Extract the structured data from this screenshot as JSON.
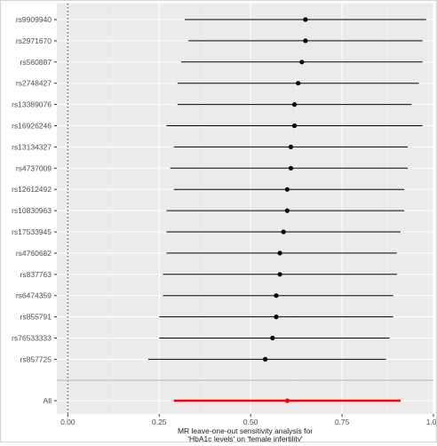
{
  "chart_data": {
    "type": "forest",
    "title": "",
    "xlabel": "MR leave-one-out sensitivity analysis for\n'HbA1c levels' on 'female infertility'",
    "ylabel": "",
    "xlim": [
      -0.03,
      1.0
    ],
    "x_ticks": [
      0.0,
      0.25,
      0.5,
      0.75,
      1.0
    ],
    "x_tick_labels": [
      "0.00",
      "0.25",
      "0.50",
      "0.75",
      "1.00"
    ],
    "reference_line": 0,
    "grid": true,
    "background": "#ebebeb",
    "overall_color": "#ff0000",
    "point_color": "#000000",
    "rows": [
      {
        "label": "rs9909940",
        "estimate": 0.65,
        "lower": 0.32,
        "upper": 0.98
      },
      {
        "label": "rs2971670",
        "estimate": 0.65,
        "lower": 0.33,
        "upper": 0.97
      },
      {
        "label": "rs560887",
        "estimate": 0.64,
        "lower": 0.31,
        "upper": 0.97
      },
      {
        "label": "rs2748427",
        "estimate": 0.63,
        "lower": 0.3,
        "upper": 0.96
      },
      {
        "label": "rs13389076",
        "estimate": 0.62,
        "lower": 0.3,
        "upper": 0.94
      },
      {
        "label": "rs16926246",
        "estimate": 0.62,
        "lower": 0.27,
        "upper": 0.97
      },
      {
        "label": "rs13134327",
        "estimate": 0.61,
        "lower": 0.29,
        "upper": 0.93
      },
      {
        "label": "rs4737009",
        "estimate": 0.61,
        "lower": 0.28,
        "upper": 0.93
      },
      {
        "label": "rs12612492",
        "estimate": 0.6,
        "lower": 0.29,
        "upper": 0.92
      },
      {
        "label": "rs10830963",
        "estimate": 0.6,
        "lower": 0.27,
        "upper": 0.92
      },
      {
        "label": "rs17533945",
        "estimate": 0.59,
        "lower": 0.27,
        "upper": 0.91
      },
      {
        "label": "rs4760682",
        "estimate": 0.58,
        "lower": 0.27,
        "upper": 0.9
      },
      {
        "label": "rs837763",
        "estimate": 0.58,
        "lower": 0.26,
        "upper": 0.9
      },
      {
        "label": "rs6474359",
        "estimate": 0.57,
        "lower": 0.26,
        "upper": 0.89
      },
      {
        "label": "rs855791",
        "estimate": 0.57,
        "lower": 0.25,
        "upper": 0.89
      },
      {
        "label": "rs76533333",
        "estimate": 0.56,
        "lower": 0.25,
        "upper": 0.88
      },
      {
        "label": "rs857725",
        "estimate": 0.54,
        "lower": 0.22,
        "upper": 0.87
      }
    ],
    "overall": {
      "label": "All",
      "estimate": 0.6,
      "lower": 0.29,
      "upper": 0.91
    }
  }
}
